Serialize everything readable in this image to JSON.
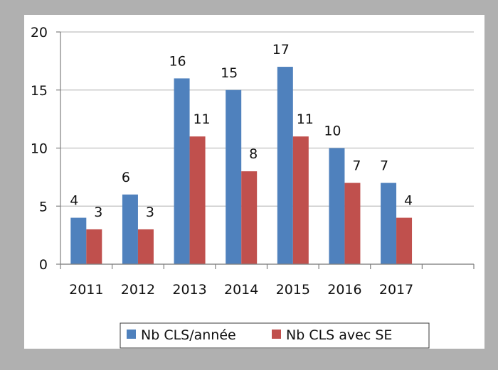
{
  "chart_data": {
    "type": "bar",
    "categories": [
      "2011",
      "2012",
      "2013",
      "2014",
      "2015",
      "2016",
      "2017",
      ""
    ],
    "series": [
      {
        "name": "Nb CLS/année",
        "values": [
          4,
          6,
          16,
          15,
          17,
          10,
          7,
          null
        ]
      },
      {
        "name": "Nb CLS avec SE",
        "values": [
          3,
          3,
          11,
          8,
          11,
          7,
          4,
          null
        ]
      }
    ],
    "title": "",
    "xlabel": "",
    "ylabel": "",
    "ylim": [
      0,
      20
    ],
    "yticks": [
      0,
      5,
      10,
      15,
      20
    ],
    "grid": true,
    "legend": "bottom",
    "colors": {
      "series1": "#4f81bd",
      "series2": "#c0504d",
      "frame": "#b0b0b0",
      "grid": "#bfbfbf"
    }
  }
}
